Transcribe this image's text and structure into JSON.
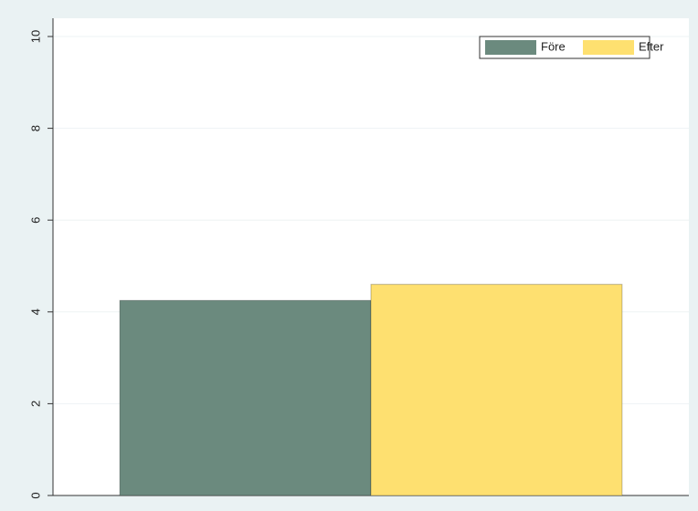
{
  "chart_data": {
    "type": "bar",
    "categories": [
      null
    ],
    "series": [
      {
        "name": "Före",
        "color": "#6b8a7e",
        "values": [
          4.25
        ]
      },
      {
        "name": "Efter",
        "color": "#fee070",
        "values": [
          4.6
        ]
      }
    ],
    "ylim": [
      0,
      10
    ],
    "yticks": [
      0,
      2,
      4,
      6,
      8,
      10
    ],
    "grid": true,
    "legend": "top-right"
  }
}
